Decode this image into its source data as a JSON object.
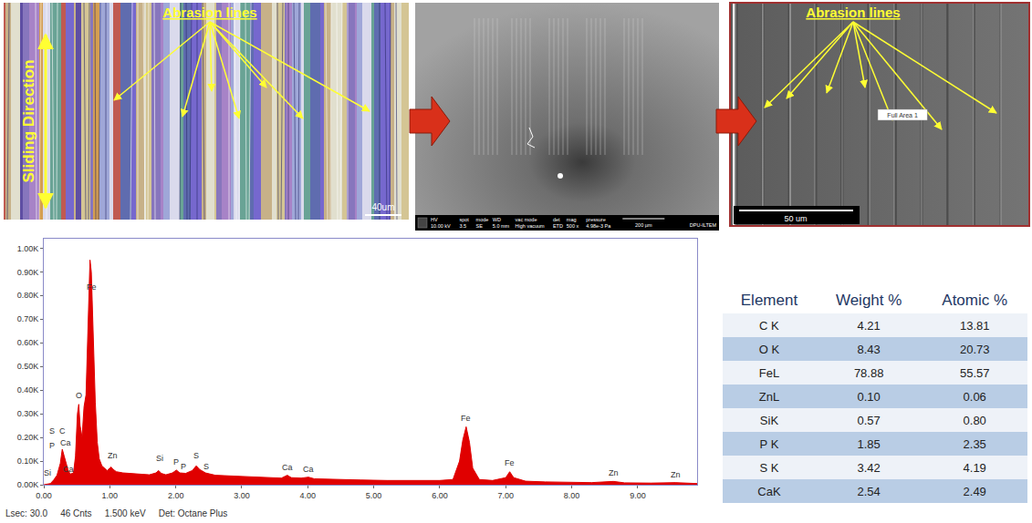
{
  "micrographs": [
    {
      "title": "Abrasion lines",
      "side_label": "Sliding Direction",
      "scale_bar": "40um"
    },
    {
      "info_bar": [
        [
          "HV",
          "10.00 kV"
        ],
        [
          "spot",
          "3.5"
        ],
        [
          "mode",
          "SE"
        ],
        [
          "WD",
          "5.0 mm"
        ],
        [
          "vac mode",
          "High vacuum"
        ],
        [
          "det",
          "ETD"
        ],
        [
          "mag",
          "500 x"
        ],
        [
          "pressure",
          "4.98e-3 Pa"
        ]
      ],
      "scale_bar": "200 µm",
      "lab": "DPU-ILTEM"
    },
    {
      "title": "Abrasion lines",
      "box_label": "Full Area 1",
      "scale_bar": "50 um"
    }
  ],
  "chart_data": {
    "type": "area",
    "color": "#e00000",
    "grid": false,
    "x": [
      0.0,
      0.1,
      0.15,
      0.2,
      0.25,
      0.28,
      0.31,
      0.34,
      0.37,
      0.4,
      0.45,
      0.48,
      0.51,
      0.53,
      0.55,
      0.58,
      0.61,
      0.64,
      0.67,
      0.7,
      0.72,
      0.75,
      0.78,
      0.81,
      0.84,
      0.88,
      0.92,
      0.96,
      1.0,
      1.02,
      1.05,
      1.1,
      1.2,
      1.3,
      1.4,
      1.5,
      1.6,
      1.7,
      1.74,
      1.78,
      1.85,
      1.95,
      2.01,
      2.06,
      2.15,
      2.25,
      2.31,
      2.36,
      2.45,
      2.6,
      2.8,
      3.0,
      3.2,
      3.4,
      3.6,
      3.69,
      3.75,
      3.9,
      4.01,
      4.1,
      4.4,
      4.8,
      5.2,
      5.6,
      6.0,
      6.2,
      6.3,
      6.35,
      6.4,
      6.45,
      6.5,
      6.6,
      6.8,
      7.0,
      7.06,
      7.12,
      7.3,
      7.6,
      8.0,
      8.3,
      8.63,
      8.8,
      9.2,
      9.57,
      9.9
    ],
    "values": [
      0,
      5,
      20,
      40,
      90,
      150,
      120,
      90,
      60,
      45,
      50,
      120,
      300,
      340,
      250,
      200,
      330,
      380,
      700,
      950,
      900,
      620,
      350,
      180,
      110,
      80,
      70,
      60,
      70,
      75,
      65,
      55,
      50,
      48,
      45,
      45,
      42,
      50,
      60,
      48,
      42,
      50,
      62,
      50,
      48,
      60,
      80,
      65,
      50,
      40,
      38,
      35,
      33,
      30,
      28,
      40,
      30,
      28,
      32,
      25,
      22,
      20,
      18,
      17,
      18,
      22,
      100,
      190,
      245,
      180,
      70,
      22,
      18,
      30,
      55,
      30,
      15,
      12,
      10,
      9,
      14,
      8,
      7,
      9,
      5
    ],
    "xlim": [
      0,
      9.9
    ],
    "xticks": [
      {
        "value": 0,
        "label": "0.00"
      },
      {
        "value": 1,
        "label": "1.00"
      },
      {
        "value": 2,
        "label": "2.00"
      },
      {
        "value": 3,
        "label": "3.00"
      },
      {
        "value": 4,
        "label": "4.00"
      },
      {
        "value": 5,
        "label": "5.00"
      },
      {
        "value": 6,
        "label": "6.00"
      },
      {
        "value": 7,
        "label": "7.00"
      },
      {
        "value": 8,
        "label": "8.00"
      },
      {
        "value": 9,
        "label": "9.00"
      }
    ],
    "ylim": [
      0,
      1040
    ],
    "yticks": [
      {
        "value": 0,
        "label": "0.00K"
      },
      {
        "value": 100,
        "label": "0.10K"
      },
      {
        "value": 200,
        "label": "0.20K"
      },
      {
        "value": 300,
        "label": "0.30K"
      },
      {
        "value": 400,
        "label": "0.40K"
      },
      {
        "value": 500,
        "label": "0.50K"
      },
      {
        "value": 600,
        "label": "0.60K"
      },
      {
        "value": 700,
        "label": "0.70K"
      },
      {
        "value": 800,
        "label": "0.80K"
      },
      {
        "value": 900,
        "label": "0.90K"
      },
      {
        "value": 1000,
        "label": "1.00K"
      }
    ],
    "annotations": [
      {
        "text": "Fe",
        "x": 0.73,
        "y": 810
      },
      {
        "text": "O",
        "x": 0.53,
        "y": 350
      },
      {
        "text": "S",
        "x": 0.12,
        "y": 200
      },
      {
        "text": "C",
        "x": 0.28,
        "y": 200
      },
      {
        "text": "P",
        "x": 0.12,
        "y": 140
      },
      {
        "text": "Ca",
        "x": 0.33,
        "y": 150
      },
      {
        "text": "Si",
        "x": 0.06,
        "y": 25
      },
      {
        "text": "Ca",
        "x": 0.38,
        "y": 40
      },
      {
        "text": "Zn",
        "x": 1.05,
        "y": 95
      },
      {
        "text": "Si",
        "x": 1.76,
        "y": 85
      },
      {
        "text": "P",
        "x": 2.0,
        "y": 70
      },
      {
        "text": "P",
        "x": 2.12,
        "y": 50
      },
      {
        "text": "S",
        "x": 2.31,
        "y": 95
      },
      {
        "text": "S",
        "x": 2.46,
        "y": 50
      },
      {
        "text": "Ca",
        "x": 3.69,
        "y": 45
      },
      {
        "text": "Ca",
        "x": 4.01,
        "y": 40
      },
      {
        "text": "Fe",
        "x": 6.4,
        "y": 255
      },
      {
        "text": "Fe",
        "x": 7.06,
        "y": 65
      },
      {
        "text": "Zn",
        "x": 8.63,
        "y": 22
      },
      {
        "text": "Zn",
        "x": 9.57,
        "y": 15
      }
    ]
  },
  "spectrum_footer": [
    "Lsec: 30.0",
    "46 Cnts",
    "1.500 keV",
    "Det: Octane Plus"
  ],
  "table": {
    "header": [
      "Element",
      "Weight %",
      "Atomic %"
    ],
    "rows": [
      [
        "C K",
        "4.21",
        "13.81"
      ],
      [
        "O K",
        "8.43",
        "20.73"
      ],
      [
        "FeL",
        "78.88",
        "55.57"
      ],
      [
        "ZnL",
        "0.10",
        "0.06"
      ],
      [
        "SiK",
        "0.57",
        "0.80"
      ],
      [
        "P K",
        "1.85",
        "2.35"
      ],
      [
        "S K",
        "3.42",
        "4.19"
      ],
      [
        "CaK",
        "2.54",
        "2.49"
      ]
    ]
  }
}
